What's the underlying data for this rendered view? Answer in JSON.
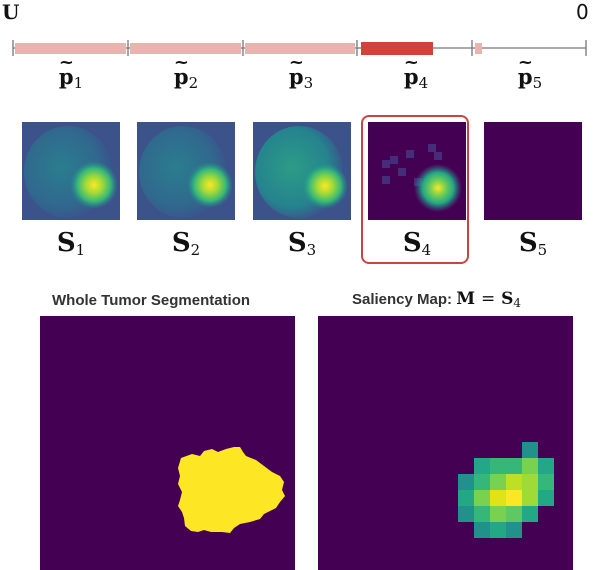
{
  "axis": {
    "left_label": "U",
    "right_label": "0",
    "segment_color_light": "#e8b4b0",
    "segment_color_active": "#d0433b",
    "line_color": "#777777"
  },
  "partitions": [
    {
      "symbol": "p",
      "sub": "1"
    },
    {
      "symbol": "p",
      "sub": "2"
    },
    {
      "symbol": "p",
      "sub": "3"
    },
    {
      "symbol": "p",
      "sub": "4"
    },
    {
      "symbol": "p",
      "sub": "5"
    }
  ],
  "tilde": "~",
  "saliency_maps": [
    {
      "symbol": "S",
      "sub": "1"
    },
    {
      "symbol": "S",
      "sub": "2"
    },
    {
      "symbol": "S",
      "sub": "3"
    },
    {
      "symbol": "S",
      "sub": "4",
      "highlighted": true
    },
    {
      "symbol": "S",
      "sub": "5"
    }
  ],
  "highlight_color": "#c8463f",
  "colormap": [
    "#440154",
    "#3b528b",
    "#21918c",
    "#5ec962",
    "#fde725"
  ],
  "panels": {
    "segmentation": {
      "title": "Whole Tumor Segmentation",
      "mask_color": "#fde725",
      "bg_color": "#440154"
    },
    "saliency": {
      "title_prefix": "Saliency Map:",
      "eq_left": "M",
      "eq_sign": "=",
      "eq_right": "S",
      "eq_sub": "4"
    }
  }
}
